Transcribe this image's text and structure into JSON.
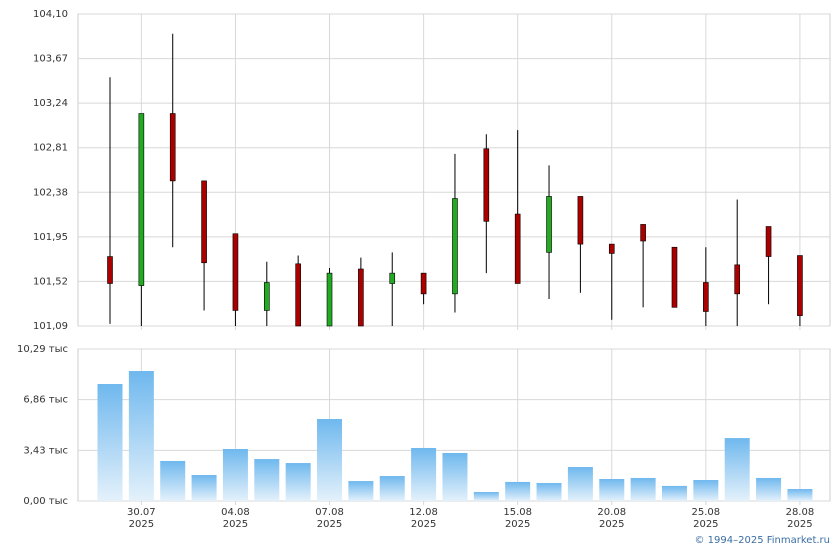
{
  "chart_data": [
    {
      "type": "candlestick",
      "open": [
        101.76,
        101.48,
        103.14,
        102.49,
        101.98,
        101.24,
        101.69,
        101.09,
        101.64,
        101.5,
        101.6,
        101.4,
        102.8,
        102.17,
        101.8,
        102.34,
        101.88,
        102.07,
        101.85,
        101.51,
        101.68,
        102.05,
        101.77
      ],
      "high": [
        103.49,
        103.14,
        103.91,
        102.49,
        101.98,
        101.71,
        101.77,
        101.65,
        101.75,
        101.8,
        101.6,
        102.75,
        102.94,
        102.98,
        102.64,
        102.34,
        101.88,
        102.07,
        101.85,
        101.85,
        102.31,
        102.05,
        101.77
      ],
      "low": [
        101.11,
        101.09,
        101.85,
        101.24,
        101.09,
        101.09,
        101.09,
        101.09,
        101.09,
        101.09,
        101.3,
        101.22,
        101.6,
        101.5,
        101.35,
        101.41,
        101.15,
        101.27,
        101.27,
        101.09,
        101.09,
        101.3,
        101.09
      ],
      "close": [
        101.5,
        103.14,
        102.49,
        101.7,
        101.24,
        101.51,
        101.09,
        101.6,
        101.09,
        101.6,
        101.4,
        102.32,
        102.1,
        101.5,
        102.34,
        101.88,
        101.79,
        101.91,
        101.27,
        101.23,
        101.4,
        101.76,
        101.19
      ],
      "up_color": "#22aa22",
      "down_color": "#aa0000",
      "ylim": [
        101.09,
        104.1
      ],
      "yticks": [
        {
          "value": 101.09,
          "label": "101,09"
        },
        {
          "value": 101.52,
          "label": "101,52"
        },
        {
          "value": 101.95,
          "label": "101,95"
        },
        {
          "value": 102.38,
          "label": "102,38"
        },
        {
          "value": 102.81,
          "label": "102,81"
        },
        {
          "value": 103.24,
          "label": "103,24"
        },
        {
          "value": 103.67,
          "label": "103,67"
        },
        {
          "value": 104.1,
          "label": "104,10"
        }
      ],
      "grid": true
    },
    {
      "type": "bar",
      "categories": [
        null,
        "30.07\n2025",
        null,
        null,
        "04.08\n2025",
        null,
        null,
        "07.08\n2025",
        null,
        null,
        "12.08\n2025",
        null,
        null,
        "15.08\n2025",
        null,
        null,
        "20.08\n2025",
        null,
        null,
        "25.08\n2025",
        null,
        null,
        "28.08\n2025"
      ],
      "values": [
        7.92,
        8.8,
        2.71,
        1.76,
        3.52,
        2.84,
        2.57,
        5.55,
        1.35,
        1.69,
        3.59,
        3.25,
        0.61,
        1.29,
        1.22,
        2.3,
        1.49,
        1.56,
        1.02,
        1.42,
        4.26,
        1.56,
        0.81
      ],
      "color": "#6fb8ee",
      "ylim": [
        0,
        10.29
      ],
      "yticks": [
        {
          "value": 0,
          "label": "0,00 тыс"
        },
        {
          "value": 3.43,
          "label": "3,43 тыс"
        },
        {
          "value": 6.86,
          "label": "6,86 тыс"
        },
        {
          "value": 10.29,
          "label": "10,29 тыс"
        }
      ],
      "grid": true
    }
  ],
  "footer": "© 1994–2025 Finmarket.ru"
}
